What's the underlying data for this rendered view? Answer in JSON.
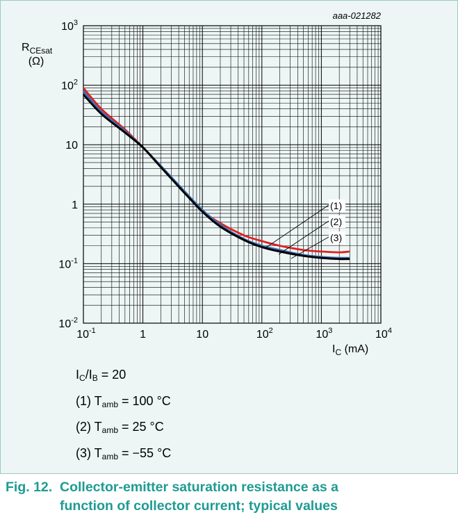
{
  "chart_data": {
    "type": "line",
    "title": "",
    "id_label": "aaa-021282",
    "ylabel": {
      "main": "R",
      "sub": "CEsat",
      "unit": "(Ω)"
    },
    "xlabel": {
      "main": "I",
      "sub": "C",
      "unit": " (mA)"
    },
    "x_scale": "log",
    "y_scale": "log",
    "xlim": [
      0.1,
      10000
    ],
    "ylim": [
      0.01,
      1000
    ],
    "grid": true,
    "x_ticks": [
      {
        "value": 0.1,
        "base": "10",
        "exp": "-1"
      },
      {
        "value": 1,
        "base": "1",
        "exp": ""
      },
      {
        "value": 10,
        "base": "10",
        "exp": ""
      },
      {
        "value": 100,
        "base": "10",
        "exp": "2"
      },
      {
        "value": 1000,
        "base": "10",
        "exp": "3"
      },
      {
        "value": 10000,
        "base": "10",
        "exp": "4"
      }
    ],
    "y_ticks": [
      {
        "value": 0.01,
        "base": "10",
        "exp": "-2"
      },
      {
        "value": 0.1,
        "base": "10",
        "exp": "-1"
      },
      {
        "value": 1,
        "base": "1",
        "exp": ""
      },
      {
        "value": 10,
        "base": "10",
        "exp": ""
      },
      {
        "value": 100,
        "base": "10",
        "exp": "2"
      },
      {
        "value": 1000,
        "base": "10",
        "exp": "3"
      }
    ],
    "series": [
      {
        "name": "(1)",
        "color": "#e02020",
        "points": [
          [
            0.1,
            90
          ],
          [
            0.2,
            40
          ],
          [
            0.5,
            18
          ],
          [
            1,
            9
          ],
          [
            2,
            4.3
          ],
          [
            5,
            1.6
          ],
          [
            10,
            0.78
          ],
          [
            20,
            0.48
          ],
          [
            50,
            0.3
          ],
          [
            100,
            0.24
          ],
          [
            200,
            0.2
          ],
          [
            500,
            0.17
          ],
          [
            1000,
            0.16
          ],
          [
            2000,
            0.155
          ],
          [
            3000,
            0.16
          ]
        ]
      },
      {
        "name": "(2)",
        "color": "#3a6fb8",
        "points": [
          [
            0.1,
            80
          ],
          [
            0.2,
            36
          ],
          [
            0.5,
            17
          ],
          [
            1,
            9
          ],
          [
            2,
            4.4
          ],
          [
            5,
            1.65
          ],
          [
            10,
            0.8
          ],
          [
            20,
            0.45
          ],
          [
            50,
            0.26
          ],
          [
            100,
            0.2
          ],
          [
            200,
            0.17
          ],
          [
            500,
            0.14
          ],
          [
            1000,
            0.13
          ],
          [
            2000,
            0.125
          ],
          [
            3000,
            0.125
          ]
        ]
      },
      {
        "name": "(3)",
        "color": "#000000",
        "points": [
          [
            0.1,
            70
          ],
          [
            0.2,
            33
          ],
          [
            0.5,
            16
          ],
          [
            1,
            9
          ],
          [
            2,
            4.2
          ],
          [
            5,
            1.55
          ],
          [
            10,
            0.75
          ],
          [
            20,
            0.42
          ],
          [
            50,
            0.25
          ],
          [
            100,
            0.19
          ],
          [
            200,
            0.16
          ],
          [
            500,
            0.135
          ],
          [
            1000,
            0.125
          ],
          [
            2000,
            0.12
          ],
          [
            3000,
            0.12
          ]
        ]
      }
    ]
  },
  "notes": {
    "ratio": {
      "a": "I",
      "a_sub": "C",
      "sep": "/I",
      "b_sub": "B",
      "rest": " = 20"
    },
    "conditions": [
      {
        "label": "(1) T",
        "sub": "amb",
        "value": " = 100 °C"
      },
      {
        "label": "(2) T",
        "sub": "amb",
        "value": " = 25 °C"
      },
      {
        "label": "(3) T",
        "sub": "amb",
        "value": " = −55 °C"
      }
    ]
  },
  "caption": {
    "number": "Fig. 12.",
    "line1": "Collector-emitter saturation resistance as a",
    "line2": "function of collector current; typical values"
  },
  "colors": {
    "accent": "#1e9b93",
    "panel_bg": "#edf6f5",
    "panel_border": "#9cc9c3"
  }
}
